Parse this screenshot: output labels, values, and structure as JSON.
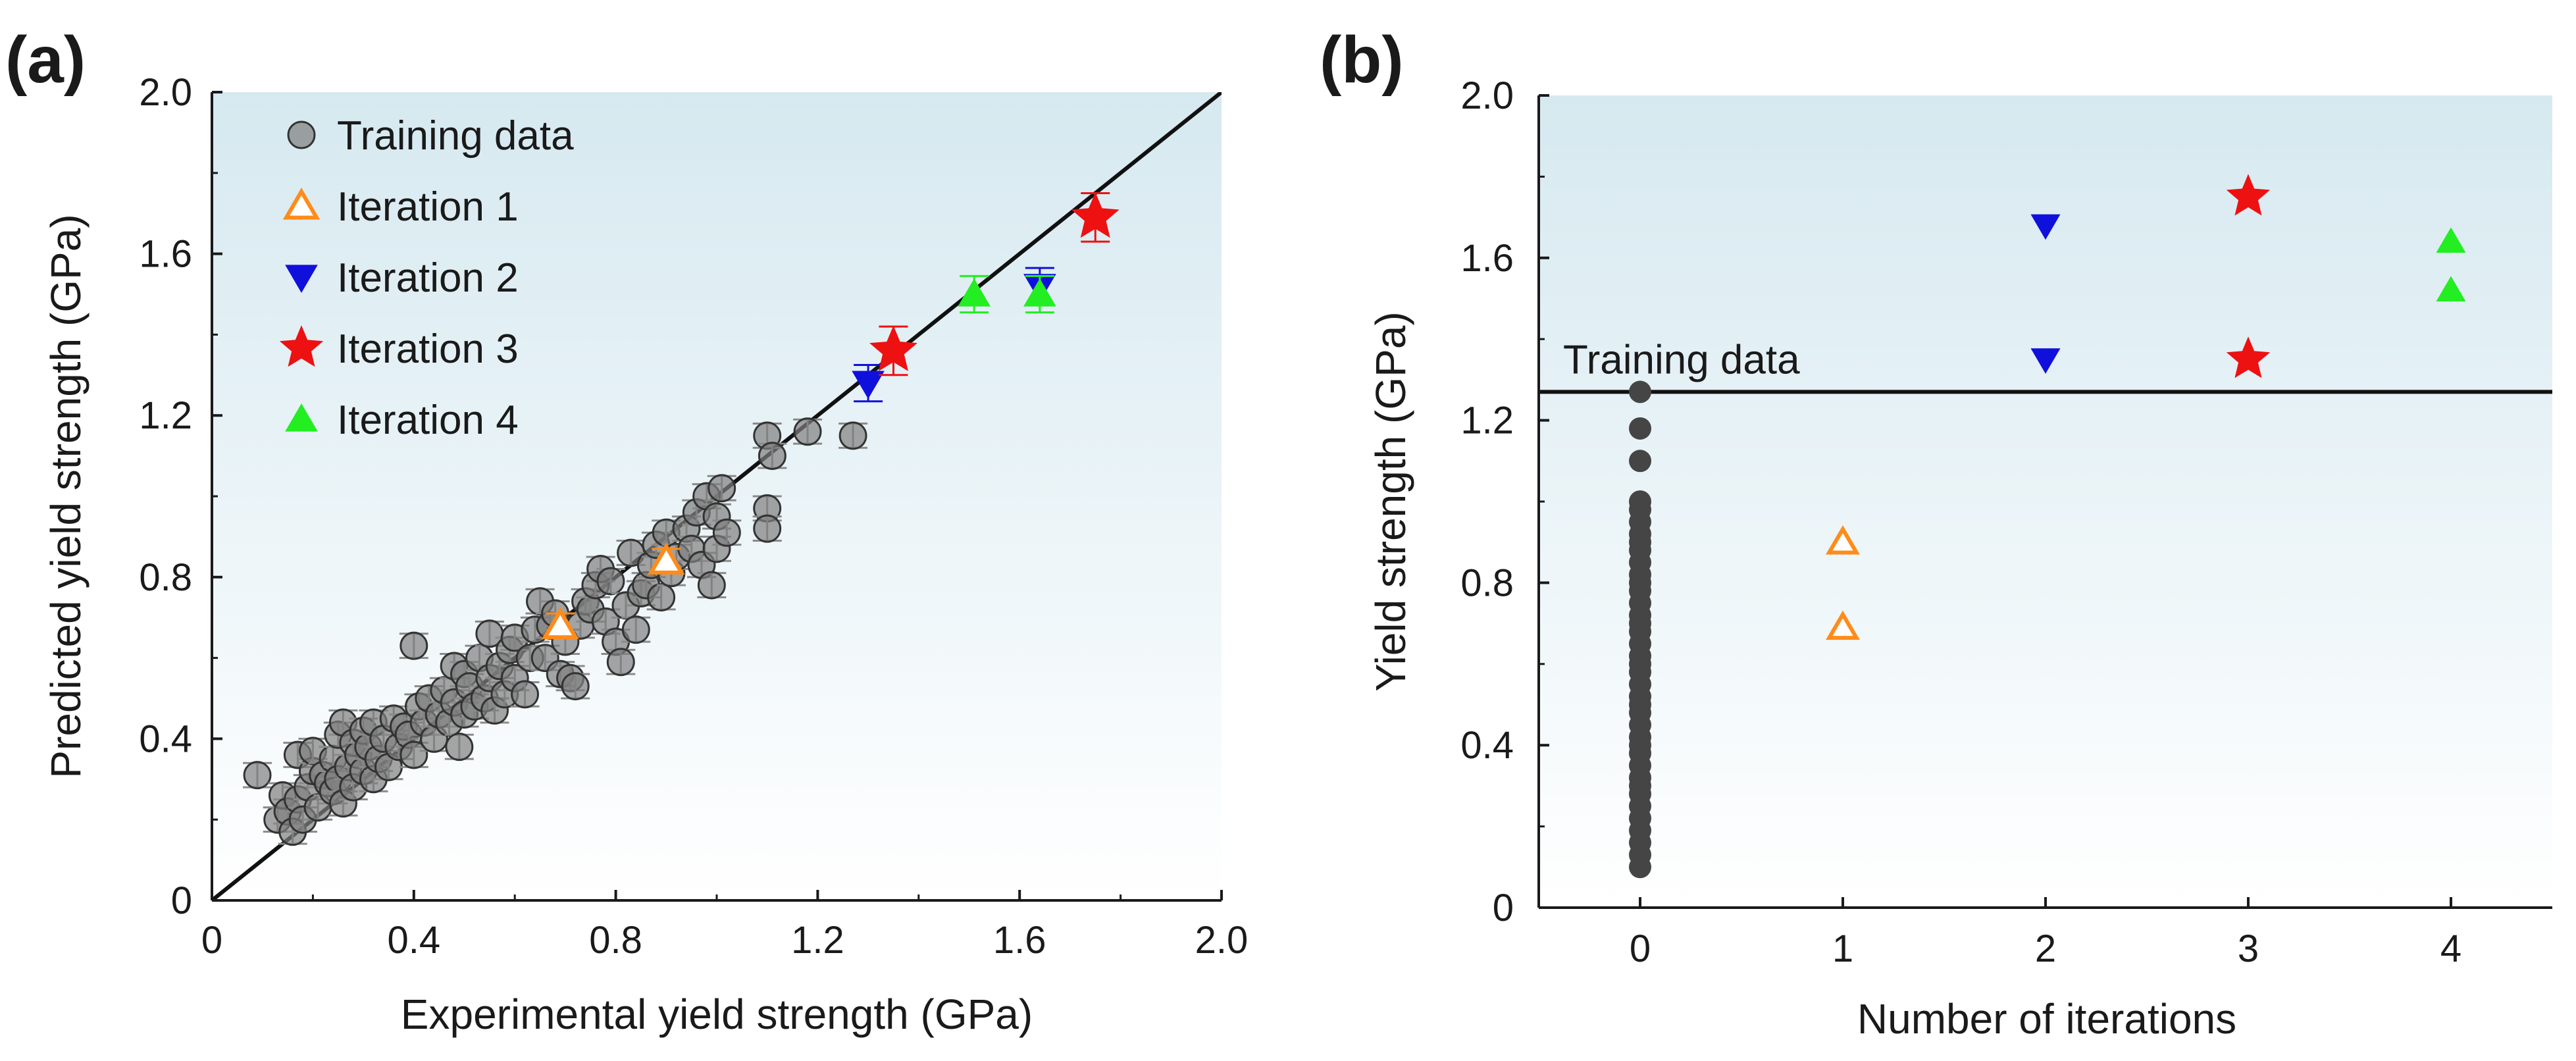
{
  "colors": {
    "training": "#7f7f7f",
    "training_b": "#454545",
    "iter1": "#ff8c1a",
    "iter2": "#1010dd",
    "iter3": "#ee1111",
    "iter4": "#22ee22",
    "shade_top": "#d6e9f0",
    "shade_bottom": "#ffffff"
  },
  "chart_data": [
    {
      "type": "scatter",
      "panel_label": "(a)",
      "xlabel": "Experimental yield strength (GPa)",
      "ylabel": "Predicted yield strength (GPa)",
      "xlim": [
        0,
        2.0
      ],
      "ylim": [
        0,
        2.0
      ],
      "xticks": [
        "0",
        "0.4",
        "0.8",
        "1.2",
        "1.6",
        "2.0"
      ],
      "yticks": [
        "0",
        "0.4",
        "0.8",
        "1.2",
        "1.6",
        "2.0"
      ],
      "xtick_values": [
        0,
        0.4,
        0.8,
        1.2,
        1.6,
        2.0
      ],
      "ytick_values": [
        0,
        0.4,
        0.8,
        1.2,
        1.6,
        2.0
      ],
      "diagonal_line": [
        [
          0,
          0
        ],
        [
          2.0,
          2.0
        ]
      ],
      "legend": {
        "placement": "top-left",
        "entries": [
          {
            "label": "Training data",
            "marker": "circle",
            "color": "#7f7f7f"
          },
          {
            "label": "Iteration 1",
            "marker": "triangle-up-open",
            "color": "#ff8c1a"
          },
          {
            "label": "Iteration 2",
            "marker": "triangle-down",
            "color": "#1010dd"
          },
          {
            "label": "Iteration 3",
            "marker": "star",
            "color": "#ee1111"
          },
          {
            "label": "Iteration 4",
            "marker": "triangle-up",
            "color": "#22ee22"
          }
        ]
      },
      "series": [
        {
          "name": "Training data",
          "marker": "circle",
          "error": 0.03,
          "points": [
            [
              0.09,
              0.31
            ],
            [
              0.13,
              0.2
            ],
            [
              0.14,
              0.26
            ],
            [
              0.15,
              0.22
            ],
            [
              0.16,
              0.17
            ],
            [
              0.17,
              0.36
            ],
            [
              0.17,
              0.25
            ],
            [
              0.18,
              0.2
            ],
            [
              0.19,
              0.28
            ],
            [
              0.2,
              0.32
            ],
            [
              0.2,
              0.37
            ],
            [
              0.21,
              0.23
            ],
            [
              0.22,
              0.31
            ],
            [
              0.23,
              0.29
            ],
            [
              0.24,
              0.35
            ],
            [
              0.24,
              0.27
            ],
            [
              0.25,
              0.41
            ],
            [
              0.25,
              0.3
            ],
            [
              0.26,
              0.44
            ],
            [
              0.26,
              0.24
            ],
            [
              0.27,
              0.33
            ],
            [
              0.28,
              0.39
            ],
            [
              0.28,
              0.28
            ],
            [
              0.29,
              0.36
            ],
            [
              0.3,
              0.42
            ],
            [
              0.3,
              0.32
            ],
            [
              0.31,
              0.38
            ],
            [
              0.32,
              0.3
            ],
            [
              0.32,
              0.44
            ],
            [
              0.33,
              0.35
            ],
            [
              0.34,
              0.4
            ],
            [
              0.35,
              0.33
            ],
            [
              0.36,
              0.45
            ],
            [
              0.37,
              0.38
            ],
            [
              0.38,
              0.43
            ],
            [
              0.39,
              0.41
            ],
            [
              0.4,
              0.63
            ],
            [
              0.4,
              0.36
            ],
            [
              0.41,
              0.48
            ],
            [
              0.42,
              0.44
            ],
            [
              0.43,
              0.5
            ],
            [
              0.44,
              0.4
            ],
            [
              0.45,
              0.46
            ],
            [
              0.46,
              0.52
            ],
            [
              0.47,
              0.44
            ],
            [
              0.48,
              0.58
            ],
            [
              0.48,
              0.49
            ],
            [
              0.49,
              0.38
            ],
            [
              0.5,
              0.56
            ],
            [
              0.5,
              0.46
            ],
            [
              0.51,
              0.53
            ],
            [
              0.52,
              0.48
            ],
            [
              0.53,
              0.6
            ],
            [
              0.54,
              0.5
            ],
            [
              0.55,
              0.66
            ],
            [
              0.55,
              0.55
            ],
            [
              0.56,
              0.47
            ],
            [
              0.57,
              0.58
            ],
            [
              0.58,
              0.51
            ],
            [
              0.59,
              0.62
            ],
            [
              0.6,
              0.65
            ],
            [
              0.6,
              0.55
            ],
            [
              0.62,
              0.51
            ],
            [
              0.63,
              0.6
            ],
            [
              0.64,
              0.67
            ],
            [
              0.65,
              0.74
            ],
            [
              0.66,
              0.6
            ],
            [
              0.67,
              0.68
            ],
            [
              0.68,
              0.71
            ],
            [
              0.69,
              0.56
            ],
            [
              0.7,
              0.64
            ],
            [
              0.71,
              0.55
            ],
            [
              0.72,
              0.53
            ],
            [
              0.73,
              0.68
            ],
            [
              0.74,
              0.74
            ],
            [
              0.75,
              0.72
            ],
            [
              0.76,
              0.78
            ],
            [
              0.77,
              0.82
            ],
            [
              0.78,
              0.69
            ],
            [
              0.79,
              0.79
            ],
            [
              0.8,
              0.64
            ],
            [
              0.81,
              0.59
            ],
            [
              0.82,
              0.73
            ],
            [
              0.83,
              0.86
            ],
            [
              0.84,
              0.67
            ],
            [
              0.85,
              0.76
            ],
            [
              0.86,
              0.78
            ],
            [
              0.87,
              0.83
            ],
            [
              0.88,
              0.88
            ],
            [
              0.89,
              0.75
            ],
            [
              0.9,
              0.91
            ],
            [
              0.91,
              0.81
            ],
            [
              0.92,
              0.85
            ],
            [
              0.94,
              0.92
            ],
            [
              0.95,
              0.87
            ],
            [
              0.96,
              0.96
            ],
            [
              0.97,
              0.83
            ],
            [
              0.98,
              1.0
            ],
            [
              0.99,
              0.78
            ],
            [
              1.0,
              0.95
            ],
            [
              1.0,
              0.87
            ],
            [
              1.01,
              1.02
            ],
            [
              1.02,
              0.91
            ],
            [
              1.1,
              1.15
            ],
            [
              1.1,
              0.97
            ],
            [
              1.1,
              0.92
            ],
            [
              1.11,
              1.1
            ],
            [
              1.18,
              1.16
            ],
            [
              1.27,
              1.15
            ]
          ]
        },
        {
          "name": "Iteration 1",
          "marker": "triangle-up-open",
          "error": 0.03,
          "points": [
            [
              0.69,
              0.68
            ],
            [
              0.9,
              0.84
            ]
          ]
        },
        {
          "name": "Iteration 2",
          "marker": "triangle-down",
          "error": 0.045,
          "points": [
            [
              1.3,
              1.28
            ],
            [
              1.64,
              1.52
            ]
          ]
        },
        {
          "name": "Iteration 3",
          "marker": "star",
          "error": 0.06,
          "points": [
            [
              1.35,
              1.36
            ],
            [
              1.75,
              1.69
            ]
          ]
        },
        {
          "name": "Iteration 4",
          "marker": "triangle-up",
          "error": 0.045,
          "points": [
            [
              1.51,
              1.5
            ],
            [
              1.64,
              1.5
            ]
          ]
        }
      ]
    },
    {
      "type": "scatter",
      "panel_label": "(b)",
      "xlabel": "Number of iterations",
      "ylabel": "Yield strength (GPa)",
      "xlim": [
        -0.5,
        4.5
      ],
      "ylim": [
        0,
        2.0
      ],
      "xticks": [
        "0",
        "1",
        "2",
        "3",
        "4"
      ],
      "yticks": [
        "0",
        "0.4",
        "0.8",
        "1.2",
        "1.6",
        "2.0"
      ],
      "xtick_values": [
        0,
        1,
        2,
        3,
        4
      ],
      "ytick_values": [
        0,
        0.4,
        0.8,
        1.2,
        1.6,
        2.0
      ],
      "hline": {
        "y": 1.27,
        "label": "Training data"
      },
      "series": [
        {
          "name": "Training data",
          "marker": "circle",
          "x": 0,
          "y": [
            0.1,
            0.13,
            0.16,
            0.19,
            0.22,
            0.25,
            0.28,
            0.3,
            0.32,
            0.35,
            0.38,
            0.4,
            0.42,
            0.45,
            0.48,
            0.5,
            0.52,
            0.55,
            0.58,
            0.6,
            0.62,
            0.65,
            0.68,
            0.7,
            0.72,
            0.75,
            0.78,
            0.8,
            0.82,
            0.85,
            0.88,
            0.9,
            0.92,
            0.95,
            0.98,
            1.0,
            1.1,
            1.18,
            1.27
          ]
        },
        {
          "name": "Iteration 1",
          "marker": "triangle-up-open",
          "x": 1,
          "y": [
            0.9,
            0.69
          ]
        },
        {
          "name": "Iteration 2",
          "marker": "triangle-down",
          "x": 2,
          "y": [
            1.68,
            1.35
          ]
        },
        {
          "name": "Iteration 3",
          "marker": "star",
          "x": 3,
          "y": [
            1.75,
            1.35
          ]
        },
        {
          "name": "Iteration 4",
          "marker": "triangle-up",
          "x": 4,
          "y": [
            1.64,
            1.52
          ]
        }
      ]
    }
  ]
}
